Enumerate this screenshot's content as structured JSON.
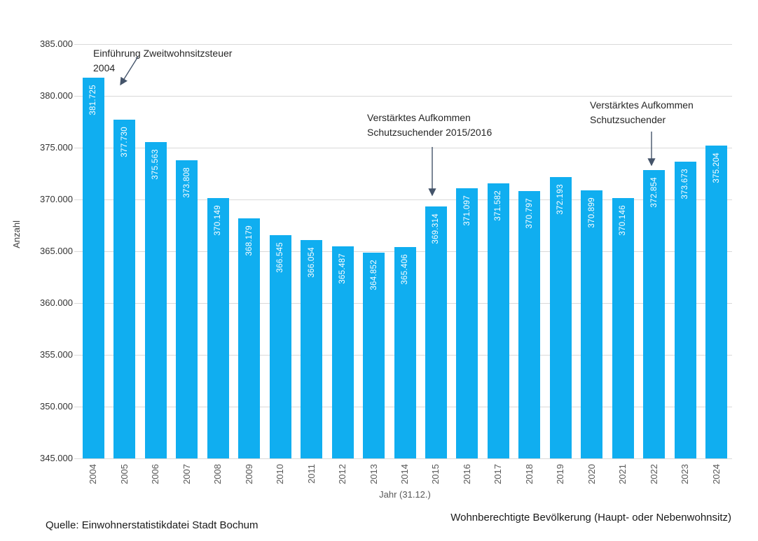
{
  "chart_data": {
    "type": "bar",
    "title": "",
    "xlabel": "Jahr (31.12.)",
    "ylabel": "Anzahl",
    "categories": [
      "2004",
      "2005",
      "2006",
      "2007",
      "2008",
      "2009",
      "2010",
      "2011",
      "2012",
      "2013",
      "2014",
      "2015",
      "2016",
      "2017",
      "2018",
      "2019",
      "2020",
      "2021",
      "2022",
      "2023",
      "2024"
    ],
    "values": [
      381725,
      377730,
      375563,
      373808,
      370149,
      368179,
      366545,
      366054,
      365487,
      364852,
      365406,
      369314,
      371097,
      371582,
      370797,
      372193,
      370899,
      370146,
      372854,
      373673,
      375204
    ],
    "value_labels": [
      "381.725",
      "377.730",
      "375.563",
      "373.808",
      "370.149",
      "368.179",
      "366.545",
      "366.054",
      "365.487",
      "364.852",
      "365.406",
      "369.314",
      "371.097",
      "371.582",
      "370.797",
      "372.193",
      "370.899",
      "370.146",
      "372.854",
      "373.673",
      "375.204"
    ],
    "ytick_labels": [
      "345.000",
      "350.000",
      "355.000",
      "360.000",
      "365.000",
      "370.000",
      "375.000",
      "380.000",
      "385.000"
    ],
    "yticks": [
      345000,
      350000,
      355000,
      360000,
      365000,
      370000,
      375000,
      380000,
      385000
    ],
    "ylim": [
      345000,
      385000
    ],
    "grid": true,
    "legend_position": "none"
  },
  "annotations": [
    {
      "line1": "Einführung Zweitwohnsitzsteuer",
      "line2": "2004"
    },
    {
      "line1": "Verstärktes Aufkommen",
      "line2": "Schutzsuchender 2015/2016"
    },
    {
      "line1": "Verstärktes Aufkommen",
      "line2": "Schutzsuchender"
    }
  ],
  "footer": {
    "source": "Quelle: Einwohnerstatistikdatei Stadt Bochum",
    "series_note": "Wohnberechtigte Bevölkerung (Haupt- oder Nebenwohnsitz)"
  },
  "colors": {
    "bar": "#10AEF0",
    "grid": "#d9d9d9",
    "arrow": "#44546A",
    "axis_text": "#595959",
    "tick_text": "#333333",
    "bar_label_text": "#ffffff"
  }
}
